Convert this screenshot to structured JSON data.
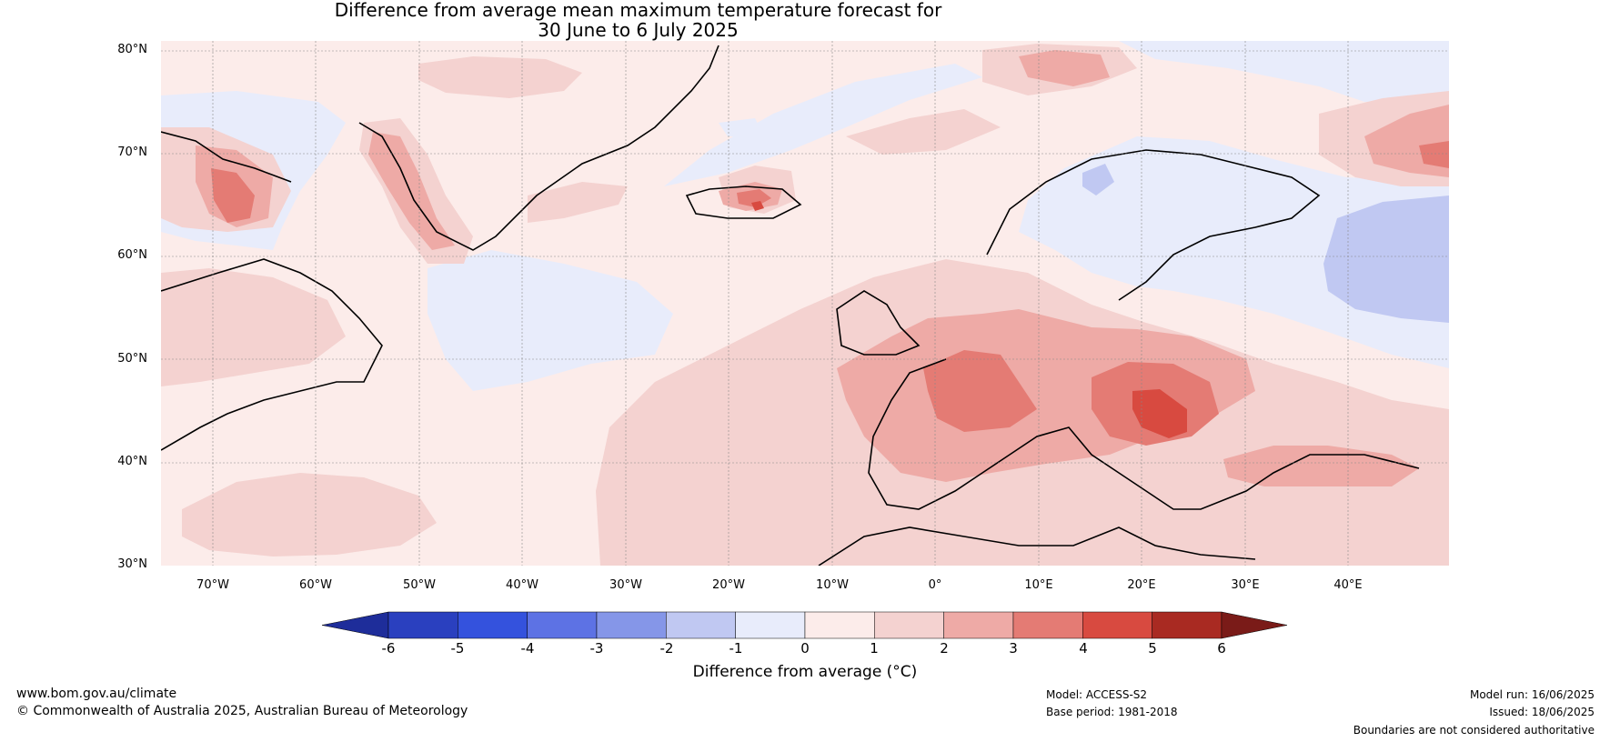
{
  "title": {
    "line1": "Difference from average mean maximum temperature forecast for",
    "line2": "30 June to 6 July 2025"
  },
  "axes": {
    "lat_labels": [
      "80°N",
      "70°N",
      "60°N",
      "50°N",
      "40°N",
      "30°N"
    ],
    "lon_labels": [
      "70°W",
      "60°W",
      "50°W",
      "40°W",
      "30°W",
      "20°W",
      "10°W",
      "0°",
      "10°E",
      "20°E",
      "30°E",
      "40°E"
    ],
    "lat_range": [
      30,
      81
    ],
    "lon_range": [
      -75,
      50
    ]
  },
  "colorbar": {
    "ticks": [
      "-6",
      "-5",
      "-4",
      "-3",
      "-2",
      "-1",
      "0",
      "1",
      "2",
      "3",
      "4",
      "5",
      "6"
    ],
    "colors": [
      "#1e2d9a",
      "#2a40bf",
      "#3452dd",
      "#5d72e4",
      "#8596e8",
      "#c0c8f2",
      "#e8ecfb",
      "#fcecea",
      "#f4d2d0",
      "#eeaaa6",
      "#e47b74",
      "#d84a40",
      "#a92a22",
      "#7a1b18"
    ],
    "label": "Difference from average (°C)"
  },
  "footer": {
    "website": "www.bom.gov.au/climate",
    "copyright": "© Commonwealth of Australia 2025, Australian Bureau of Meteorology",
    "model": "Model: ACCESS-S2",
    "base_period": "Base period: 1981-2018",
    "model_run": "Model run: 16/06/2025",
    "issued": "Issued: 18/06/2025",
    "disclaimer": "Boundaries are not considered authoritative"
  }
}
